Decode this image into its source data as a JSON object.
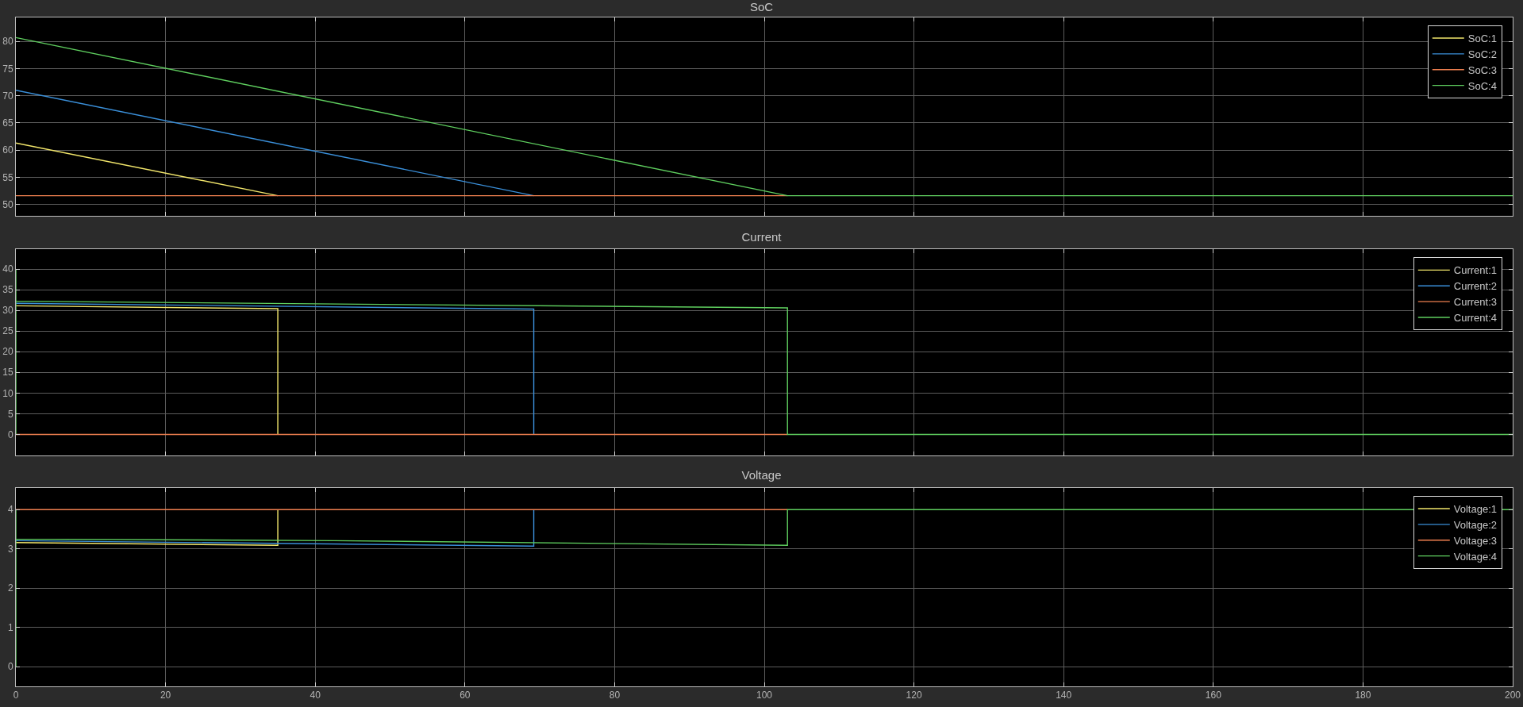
{
  "chart_data": [
    {
      "type": "line",
      "title": "SoC",
      "xlim": [
        0,
        200
      ],
      "xticks": [
        0,
        20,
        40,
        60,
        80,
        100,
        120,
        140,
        160,
        180,
        200
      ],
      "ylim": [
        47.9,
        84.4
      ],
      "yticks": [
        50,
        55,
        60,
        65,
        70,
        75,
        80
      ],
      "tick_labels": "y",
      "grid": true,
      "legend": "top right",
      "series": [
        {
          "name": "SoC:1",
          "color": "#f2e66b",
          "x": [
            0,
            35
          ],
          "values": [
            61.3,
            51.6
          ]
        },
        {
          "name": "SoC:2",
          "color": "#3a8fd9",
          "x": [
            0,
            69.2
          ],
          "values": [
            71.0,
            51.6
          ]
        },
        {
          "name": "SoC:3",
          "color": "#f08050",
          "x": [
            0,
            103.1
          ],
          "values": [
            51.6,
            51.6
          ]
        },
        {
          "name": "SoC:4",
          "color": "#5fcf5f",
          "x": [
            0,
            103.1,
            200
          ],
          "values": [
            80.7,
            51.6,
            51.6
          ]
        }
      ]
    },
    {
      "type": "line",
      "title": "Current",
      "xlim": [
        0,
        200
      ],
      "xticks": [
        0,
        20,
        40,
        60,
        80,
        100,
        120,
        140,
        160,
        180,
        200
      ],
      "ylim": [
        -5.1,
        44.8
      ],
      "yticks": [
        0,
        5,
        10,
        15,
        20,
        25,
        30,
        35,
        40
      ],
      "tick_labels": "y",
      "grid": true,
      "legend": "top right",
      "series": [
        {
          "name": "Current:1",
          "color": "#f2e66b",
          "x": [
            0,
            35,
            35
          ],
          "values": [
            31.1,
            30.4,
            0
          ]
        },
        {
          "name": "Current:2",
          "color": "#3a8fd9",
          "x": [
            0,
            69.2,
            69.2
          ],
          "values": [
            31.7,
            30.3,
            0
          ]
        },
        {
          "name": "Current:3",
          "color": "#f08050",
          "x": [
            0,
            103.1
          ],
          "values": [
            0,
            0
          ]
        },
        {
          "name": "Current:4",
          "color": "#5fcf5f",
          "x": [
            0,
            0,
            0,
            103.1,
            103.1,
            200
          ],
          "values": [
            0,
            40,
            32.2,
            30.6,
            0,
            0
          ]
        }
      ]
    },
    {
      "type": "line",
      "title": "Voltage",
      "xlim": [
        0,
        200
      ],
      "xticks": [
        0,
        20,
        40,
        60,
        80,
        100,
        120,
        140,
        160,
        180,
        200
      ],
      "ylim": [
        -0.5,
        4.55
      ],
      "yticks": [
        0,
        1,
        2,
        3,
        4
      ],
      "grid": true,
      "legend": "top right",
      "series": [
        {
          "name": "Voltage:1",
          "color": "#f2e66b",
          "x": [
            0,
            35,
            35
          ],
          "values": [
            3.16,
            3.09,
            4.0
          ]
        },
        {
          "name": "Voltage:2",
          "color": "#3a8fd9",
          "x": [
            0,
            69.2,
            69.2
          ],
          "values": [
            3.21,
            3.07,
            4.0
          ]
        },
        {
          "name": "Voltage:3",
          "color": "#f08050",
          "x": [
            0,
            103.1
          ],
          "values": [
            4.0,
            4.0
          ]
        },
        {
          "name": "Voltage:4",
          "color": "#5fcf5f",
          "x": [
            0,
            0,
            0,
            42.5,
            103.1,
            103.1,
            200
          ],
          "values": [
            0,
            4.0,
            3.25,
            3.21,
            3.09,
            4.0,
            4.0
          ]
        }
      ]
    }
  ]
}
